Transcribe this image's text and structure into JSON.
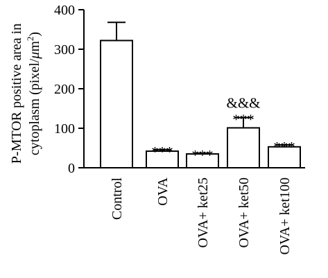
{
  "chart_data": {
    "type": "bar",
    "categories": [
      "Control",
      "OVA",
      "OVA+ ket25",
      "OVA+ ket50",
      "OVA+ ket100"
    ],
    "values": [
      322,
      42,
      35,
      101,
      53
    ],
    "errors": [
      46,
      4,
      2,
      26,
      5
    ],
    "annotations": [
      "",
      "***",
      "***",
      "***",
      "***"
    ],
    "annotations_top": [
      "",
      "",
      "",
      "&&&",
      ""
    ],
    "ylabel_line1": "P-MTOR positive area in",
    "ylabel_line2_prefix": "cytoplasm (pixel/",
    "ylabel_line2_mu": "μ",
    "ylabel_line2_unit": "m",
    "ylabel_line2_sup": "2",
    "ylabel_line2_suffix": ")",
    "ylim": [
      0,
      400
    ],
    "yticks": [
      0,
      100,
      200,
      300,
      400
    ],
    "bar_fill": "#ffffff",
    "bar_stroke": "#000000",
    "grid": false,
    "legend": "none"
  }
}
